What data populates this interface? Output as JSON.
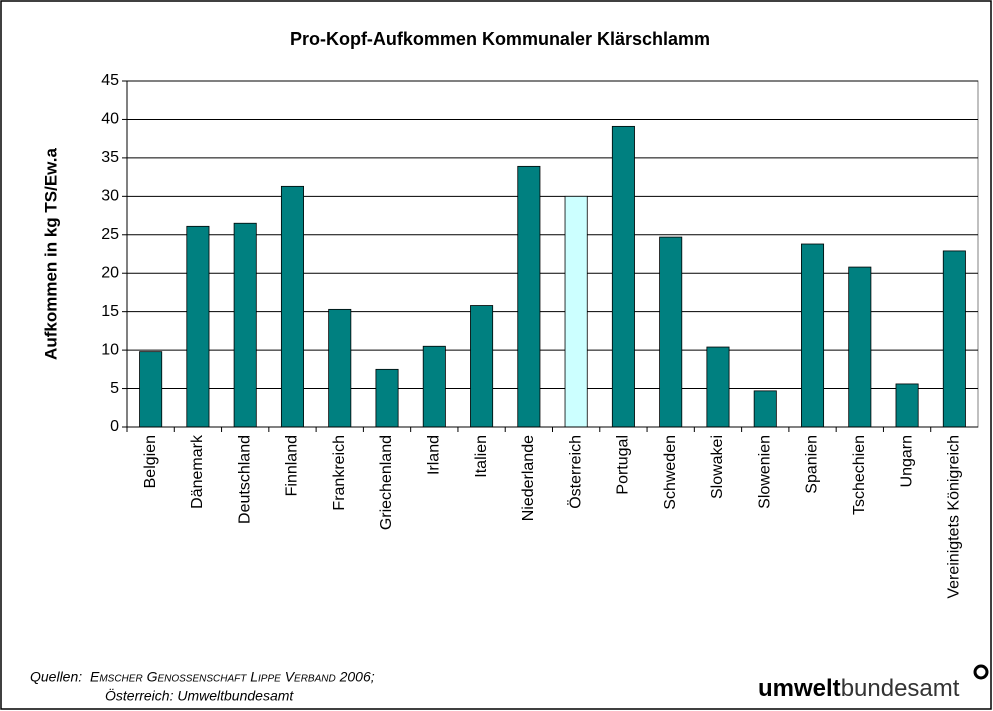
{
  "chart_data": {
    "type": "bar",
    "title": "Pro-Kopf-Aufkommen Kommunaler Klärschlamm",
    "y_label": "Aufkommen in kg TS/Ew.a",
    "categories": [
      "Belgien",
      "Dänemark",
      "Deutschland",
      "Finnland",
      "Frankreich",
      "Griechenland",
      "Irland",
      "Italien",
      "Niederlande",
      "Österreich",
      "Portugal",
      "Schweden",
      "Slowakei",
      "Slowenien",
      "Spanien",
      "Tschechien",
      "Ungarn",
      "Vereinigtets Königreich"
    ],
    "values": [
      9.8,
      26.1,
      26.5,
      31.3,
      15.3,
      7.5,
      10.5,
      15.8,
      33.9,
      30.0,
      39.1,
      24.7,
      10.4,
      4.7,
      23.8,
      20.8,
      5.6,
      22.9
    ],
    "colors": [
      "#008080",
      "#008080",
      "#008080",
      "#008080",
      "#008080",
      "#008080",
      "#008080",
      "#008080",
      "#008080",
      "#ccffff",
      "#008080",
      "#008080",
      "#008080",
      "#008080",
      "#008080",
      "#008080",
      "#008080",
      "#008080"
    ],
    "ylim": [
      0,
      45
    ],
    "yticks": [
      0,
      5,
      10,
      15,
      20,
      25,
      30,
      35,
      40,
      45
    ],
    "grid": true
  },
  "footer": {
    "source_label": "Quellen:",
    "source_1": "Emscher Genossenschaft Lippe Verband 2006;",
    "source_2": "Österreich: Umweltbundesamt",
    "logo_bold": "umwelt",
    "logo_light": "bundesamt"
  }
}
